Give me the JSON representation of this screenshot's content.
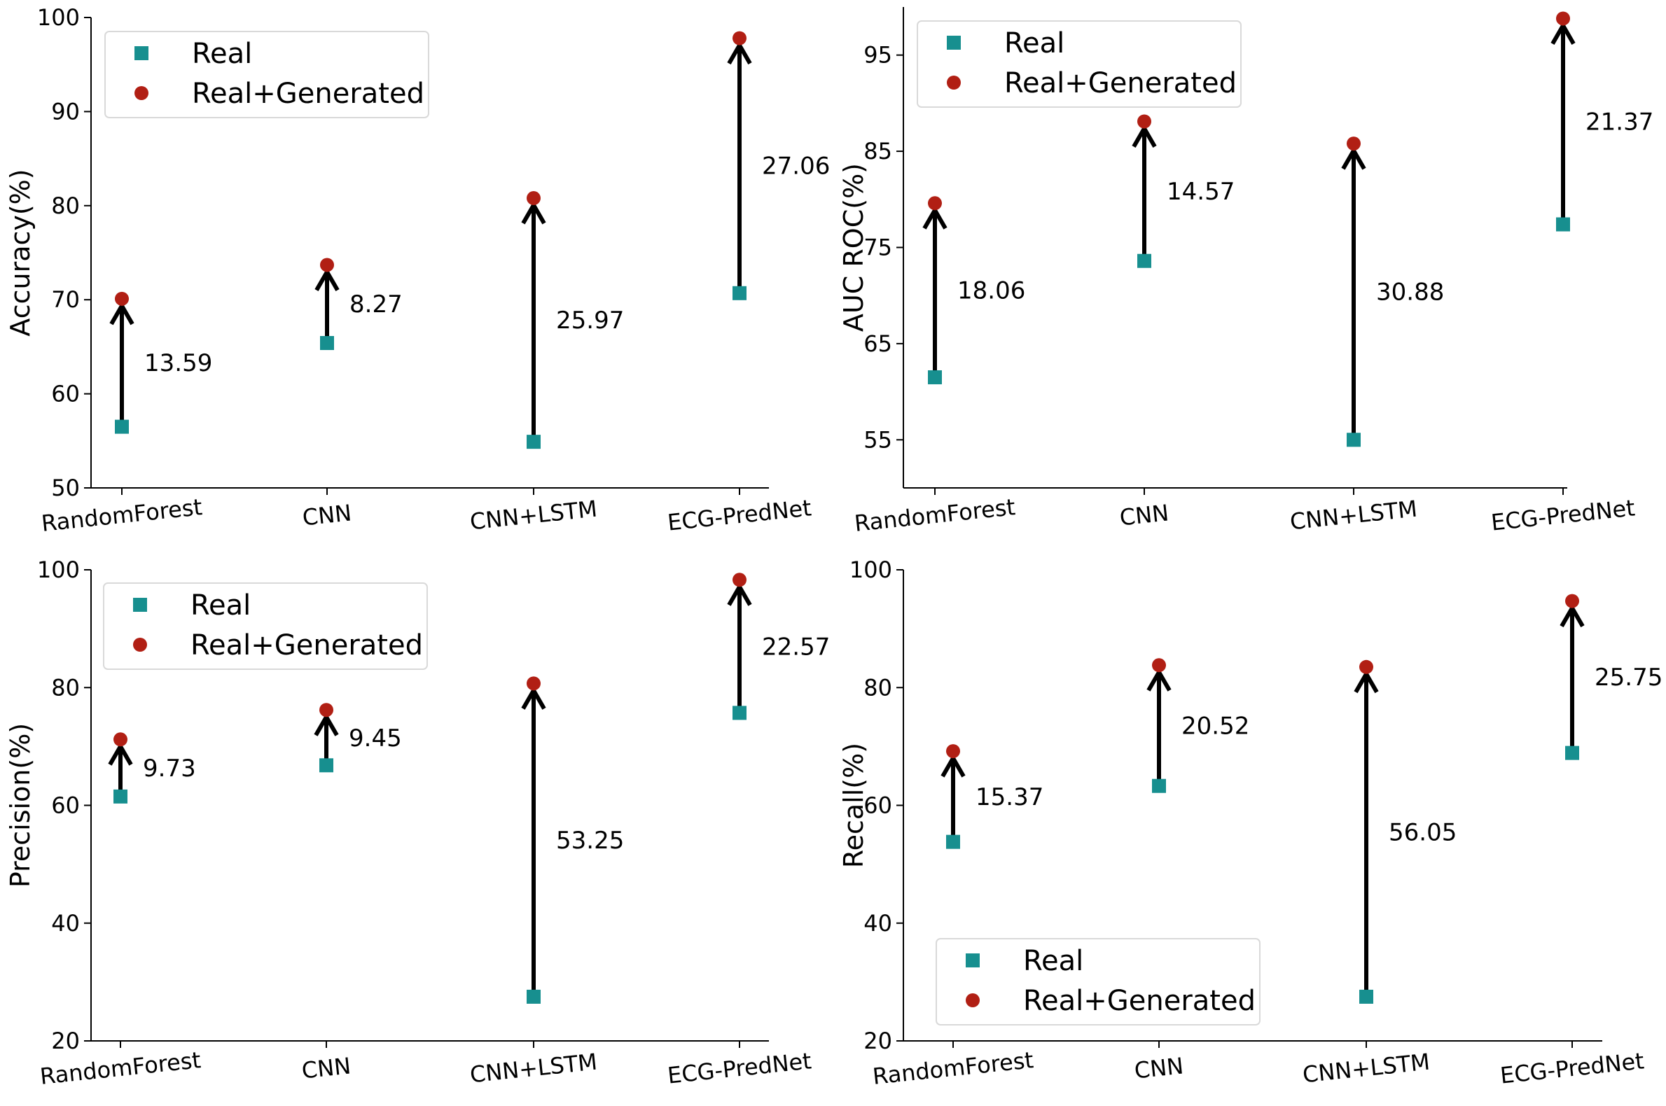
{
  "colors": {
    "real": "#178f8f",
    "generated": "#b11f14"
  },
  "chart_data": [
    {
      "type": "scatter",
      "panel": "top-left",
      "ylabel": "Accuracy(%)",
      "ylim": [
        50,
        100
      ],
      "yticks": [
        50,
        60,
        70,
        80,
        90,
        100
      ],
      "categories": [
        "RandomForest",
        "CNN",
        "CNN+LSTM",
        "ECG-PredNet"
      ],
      "series": [
        {
          "name": "Real",
          "marker": "square",
          "values": [
            56.5,
            65.4,
            54.9,
            70.7
          ]
        },
        {
          "name": "Real+Generated",
          "marker": "circle",
          "values": [
            70.1,
            73.7,
            80.8,
            97.8
          ]
        }
      ],
      "deltas": [
        "13.59",
        "8.27",
        "25.97",
        "27.06"
      ],
      "legend": "top-left"
    },
    {
      "type": "scatter",
      "panel": "top-right",
      "ylabel": "AUC ROC(%)",
      "ylim": [
        50,
        100
      ],
      "yticks": [
        55,
        65,
        75,
        85,
        95
      ],
      "categories": [
        "RandomForest",
        "CNN",
        "CNN+LSTM",
        "ECG-PredNet"
      ],
      "series": [
        {
          "name": "Real",
          "marker": "square",
          "values": [
            61.5,
            73.6,
            55.0,
            77.4
          ]
        },
        {
          "name": "Real+Generated",
          "marker": "circle",
          "values": [
            79.6,
            88.1,
            85.8,
            98.8
          ]
        }
      ],
      "deltas": [
        "18.06",
        "14.57",
        "30.88",
        "21.37"
      ],
      "legend": "top-left"
    },
    {
      "type": "scatter",
      "panel": "bottom-left",
      "ylabel": "Precision(%)",
      "ylim": [
        20,
        100
      ],
      "yticks": [
        20,
        40,
        60,
        80,
        100
      ],
      "categories": [
        "RandomForest",
        "CNN",
        "CNN+LSTM",
        "ECG-PredNet"
      ],
      "series": [
        {
          "name": "Real",
          "marker": "square",
          "values": [
            61.5,
            66.8,
            27.5,
            75.7
          ]
        },
        {
          "name": "Real+Generated",
          "marker": "circle",
          "values": [
            71.2,
            76.2,
            80.7,
            98.3
          ]
        }
      ],
      "deltas": [
        "9.73",
        "9.45",
        "53.25",
        "22.57"
      ],
      "legend": "top-left"
    },
    {
      "type": "scatter",
      "panel": "bottom-right",
      "ylabel": "Recall(%)",
      "ylim": [
        20,
        100
      ],
      "yticks": [
        20,
        40,
        60,
        80,
        100
      ],
      "categories": [
        "RandomForest",
        "CNN",
        "CNN+LSTM",
        "ECG-PredNet"
      ],
      "series": [
        {
          "name": "Real",
          "marker": "square",
          "values": [
            53.8,
            63.3,
            27.5,
            68.9
          ]
        },
        {
          "name": "Real+Generated",
          "marker": "circle",
          "values": [
            69.2,
            83.8,
            83.5,
            94.7
          ]
        }
      ],
      "deltas": [
        "15.37",
        "20.52",
        "56.05",
        "25.75"
      ],
      "legend": "bottom-left"
    }
  ]
}
